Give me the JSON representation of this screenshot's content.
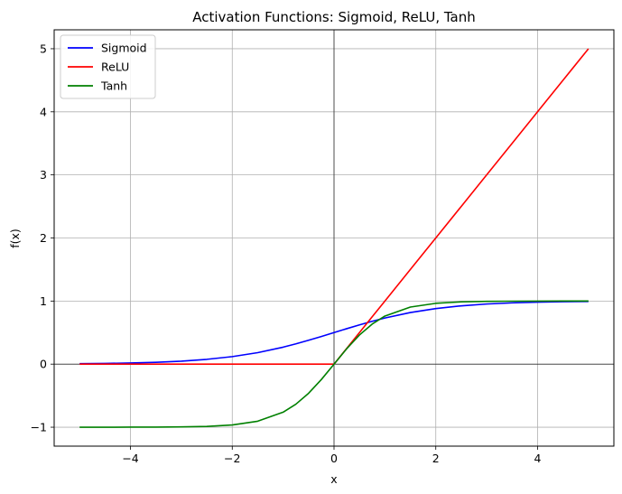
{
  "chart_data": {
    "type": "line",
    "title": "Activation Functions: Sigmoid, ReLU, Tanh",
    "xlabel": "x",
    "ylabel": "f(x)",
    "xlim": [
      -5.5,
      5.5
    ],
    "ylim": [
      -1.3,
      5.3
    ],
    "xticks": [
      -4,
      -2,
      0,
      2,
      4
    ],
    "xtick_labels": [
      "−4",
      "−2",
      "0",
      "2",
      "4"
    ],
    "yticks": [
      -1,
      0,
      1,
      2,
      3,
      4,
      5
    ],
    "ytick_labels": [
      "−1",
      "0",
      "1",
      "2",
      "3",
      "4",
      "5"
    ],
    "grid": true,
    "reference_lines": {
      "x": 0,
      "y": 0,
      "color": "#000000"
    },
    "legend_position": "top-left",
    "x": [
      -5,
      -4.5,
      -4,
      -3.5,
      -3,
      -2.5,
      -2,
      -1.5,
      -1,
      -0.75,
      -0.5,
      -0.25,
      0,
      0.25,
      0.5,
      0.75,
      1,
      1.5,
      2,
      2.5,
      3,
      3.5,
      4,
      4.5,
      5
    ],
    "series": [
      {
        "name": "Sigmoid",
        "color": "#0000ff",
        "values": [
          0.007,
          0.011,
          0.018,
          0.029,
          0.047,
          0.076,
          0.119,
          0.182,
          0.269,
          0.321,
          0.378,
          0.438,
          0.5,
          0.562,
          0.622,
          0.679,
          0.731,
          0.818,
          0.881,
          0.924,
          0.953,
          0.971,
          0.982,
          0.989,
          0.993
        ]
      },
      {
        "name": "ReLU",
        "color": "#ff0000",
        "values": [
          0,
          0,
          0,
          0,
          0,
          0,
          0,
          0,
          0,
          0,
          0,
          0,
          0,
          0.25,
          0.5,
          0.75,
          1,
          1.5,
          2,
          2.5,
          3,
          3.5,
          4,
          4.5,
          5
        ]
      },
      {
        "name": "Tanh",
        "color": "#008000",
        "values": [
          -1.0,
          -1.0,
          -0.999,
          -0.998,
          -0.995,
          -0.987,
          -0.964,
          -0.905,
          -0.762,
          -0.635,
          -0.462,
          -0.245,
          0,
          0.245,
          0.462,
          0.635,
          0.762,
          0.905,
          0.964,
          0.987,
          0.995,
          0.998,
          0.999,
          1.0,
          1.0
        ]
      }
    ]
  }
}
